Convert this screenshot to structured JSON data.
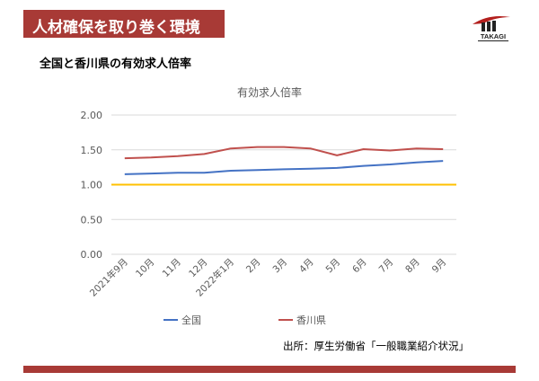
{
  "header": {
    "title": "人材確保を取り巻く環境"
  },
  "logo": {
    "text": "TAKAGI",
    "colors": {
      "primary": "#b3201e",
      "dark": "#222222"
    }
  },
  "subtitle": "全国と香川県の有効求人倍率",
  "chart_data": {
    "type": "line",
    "title": "有効求人倍率",
    "categories": [
      "2021年9月",
      "10月",
      "11月",
      "12月",
      "2022年1月",
      "2月",
      "3月",
      "4月",
      "5月",
      "6月",
      "7月",
      "8月",
      "9月"
    ],
    "series": [
      {
        "name": "全国",
        "color": "#4472c4",
        "values": [
          1.15,
          1.16,
          1.17,
          1.17,
          1.2,
          1.21,
          1.22,
          1.23,
          1.24,
          1.27,
          1.29,
          1.32,
          1.34
        ]
      },
      {
        "name": "香川県",
        "color": "#c0504d",
        "values": [
          1.38,
          1.39,
          1.41,
          1.44,
          1.52,
          1.54,
          1.54,
          1.52,
          1.42,
          1.51,
          1.49,
          1.52,
          1.51
        ]
      }
    ],
    "reference_line": {
      "value": 1.0,
      "color": "#ffc000"
    },
    "y_ticks": [
      "0.00",
      "0.50",
      "1.00",
      "1.50",
      "2.00"
    ],
    "ylim": [
      0,
      2.0
    ],
    "grid": true,
    "legend": "bottom"
  },
  "source": "出所：厚生労働省「一般職業紹介状況」",
  "colors": {
    "accent": "#a83a36"
  }
}
